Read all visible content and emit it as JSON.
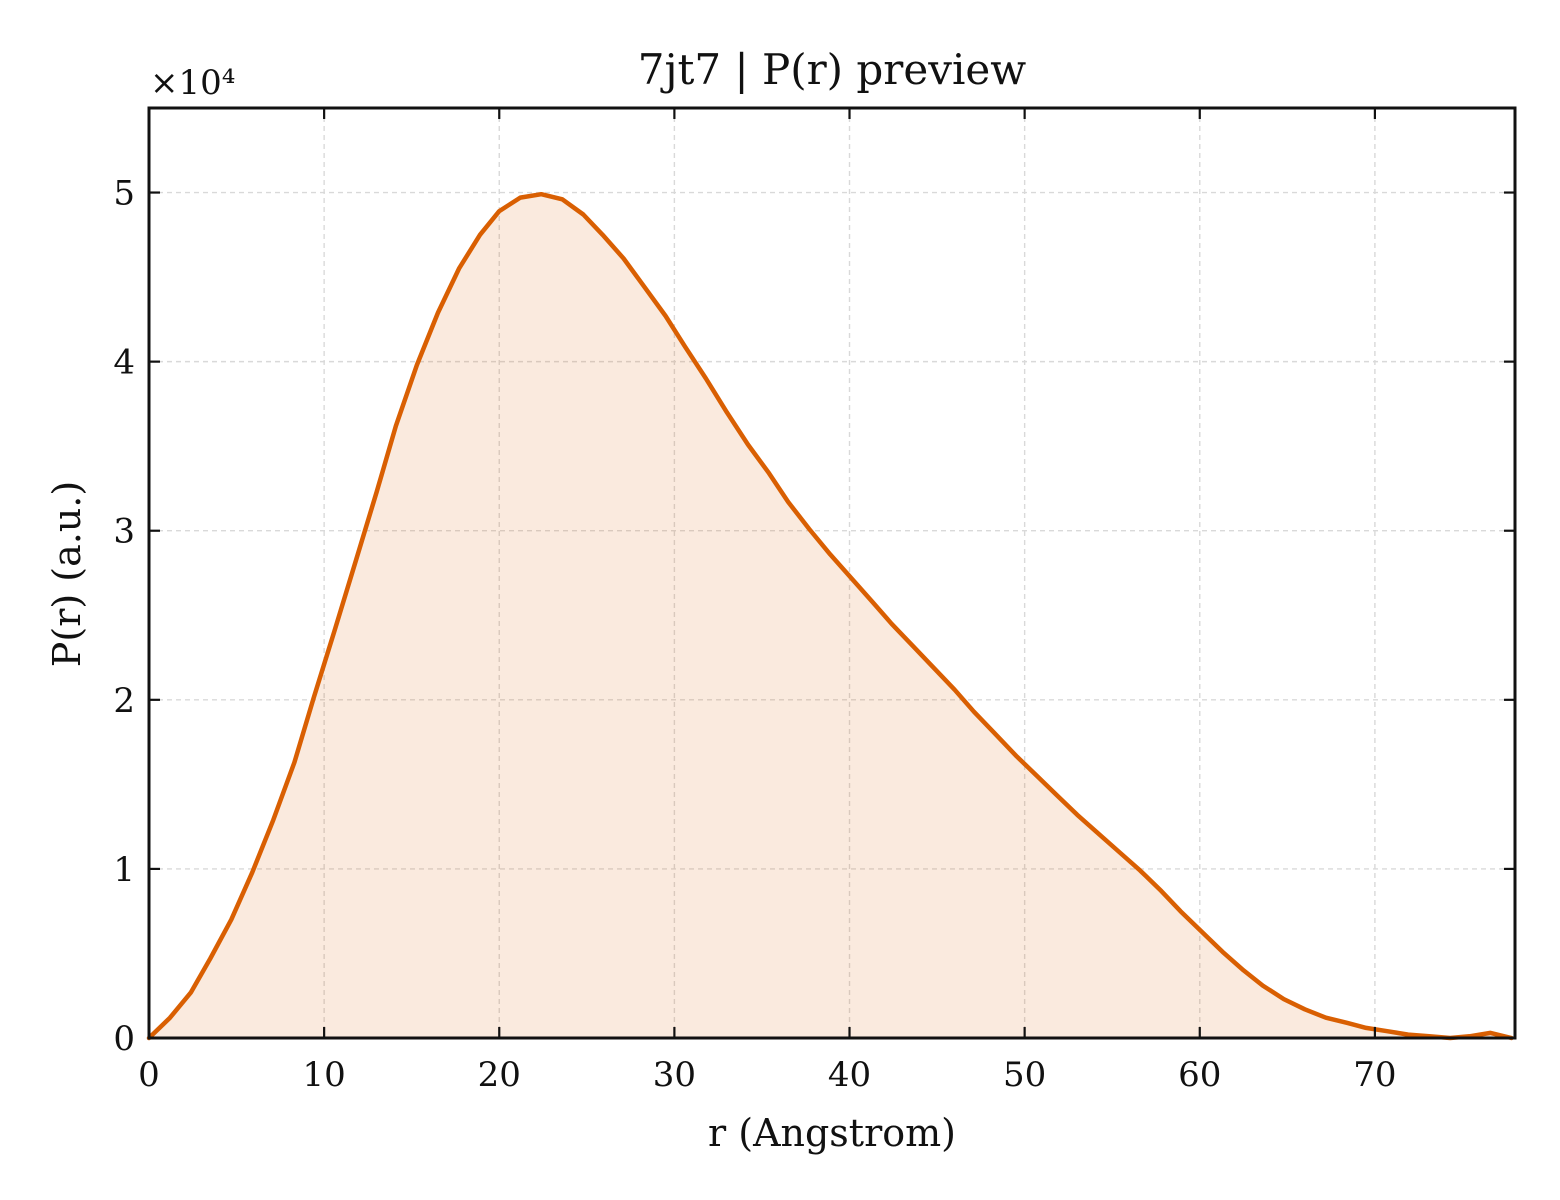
{
  "chart_data": {
    "type": "area",
    "title": "7jt7 | P(r) preview",
    "xlabel": "r (Angstrom)",
    "ylabel": "P(r) (a.u.)",
    "y_offset_label": "×10⁴",
    "xlim": [
      0,
      78
    ],
    "ylim": [
      0,
      5.5
    ],
    "y_scale_factor": 10000,
    "x_ticks": [
      0,
      10,
      20,
      30,
      40,
      50,
      60,
      70
    ],
    "x_tick_labels": [
      "0",
      "10",
      "20",
      "30",
      "40",
      "50",
      "60",
      "70"
    ],
    "y_ticks": [
      0,
      1,
      2,
      3,
      4,
      5
    ],
    "y_tick_labels": [
      "0",
      "1",
      "2",
      "3",
      "4",
      "5"
    ],
    "grid": true,
    "legend": "none",
    "series": [
      {
        "color": "#d95f02",
        "fill_color": "#d95f02",
        "fill_opacity": 0.13,
        "x": [
          0,
          1.2,
          2.4,
          3.5,
          4.7,
          5.9,
          7.1,
          8.3,
          9.4,
          10.6,
          11.8,
          13.0,
          14.1,
          15.3,
          16.5,
          17.7,
          18.9,
          20.0,
          21.2,
          22.4,
          23.6,
          24.8,
          25.9,
          27.1,
          28.3,
          29.5,
          30.6,
          31.8,
          33.0,
          34.2,
          35.4,
          36.5,
          37.7,
          38.9,
          40.1,
          41.3,
          42.4,
          43.6,
          44.8,
          46.0,
          47.1,
          48.3,
          49.5,
          50.7,
          51.9,
          53.0,
          54.2,
          55.4,
          56.6,
          57.8,
          58.9,
          60.1,
          61.3,
          62.5,
          63.6,
          64.8,
          66.0,
          67.2,
          68.4,
          69.5,
          70.7,
          71.9,
          73.1,
          74.3,
          75.4,
          76.6,
          77.8
        ],
        "y": [
          0,
          0.12,
          0.27,
          0.47,
          0.7,
          0.98,
          1.29,
          1.63,
          2.01,
          2.41,
          2.82,
          3.23,
          3.62,
          3.98,
          4.29,
          4.55,
          4.75,
          4.89,
          4.97,
          4.99,
          4.96,
          4.87,
          4.75,
          4.61,
          4.44,
          4.27,
          4.09,
          3.9,
          3.7,
          3.51,
          3.34,
          3.17,
          3.01,
          2.86,
          2.72,
          2.58,
          2.45,
          2.32,
          2.19,
          2.06,
          1.93,
          1.8,
          1.67,
          1.55,
          1.43,
          1.32,
          1.21,
          1.1,
          0.99,
          0.87,
          0.75,
          0.63,
          0.51,
          0.4,
          0.31,
          0.23,
          0.17,
          0.12,
          0.09,
          0.06,
          0.04,
          0.02,
          0.01,
          0.0,
          0.01,
          0.03,
          0.0
        ]
      }
    ]
  }
}
